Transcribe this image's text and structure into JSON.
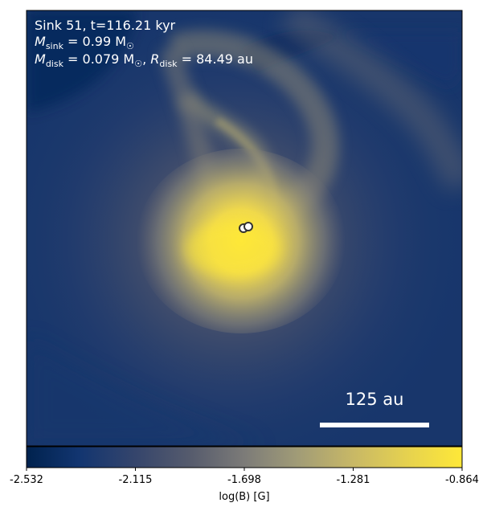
{
  "panel": {
    "line1": "Sink 51, t=116.21 kyr",
    "line2_label": "M",
    "line2_sub": "sink",
    "line2_value": " = 0.99 M",
    "line2_sun": "☉",
    "line3_label": "M",
    "line3_sub": "disk",
    "line3_value": " = 0.079 M",
    "line3_sun": "☉",
    "line3_sep": ", ",
    "line3_r_label": "R",
    "line3_r_sub": "disk",
    "line3_r_value": " = 84.49 au",
    "scalebar_label": "125 au"
  },
  "colorbar": {
    "label": "log(B) [G]",
    "ticks": [
      "-2.532",
      "-2.115",
      "-1.698",
      "-1.281",
      "-0.864"
    ],
    "colormap": "cividis",
    "min": -2.532,
    "max": -0.864
  },
  "colors": {
    "dark": "#00224e",
    "mid": "#7c7b78",
    "bright": "#fee838",
    "sink_marker_fill": "#ffffff",
    "sink_marker_edge": "#333333"
  },
  "sinks": {
    "count": 2
  }
}
